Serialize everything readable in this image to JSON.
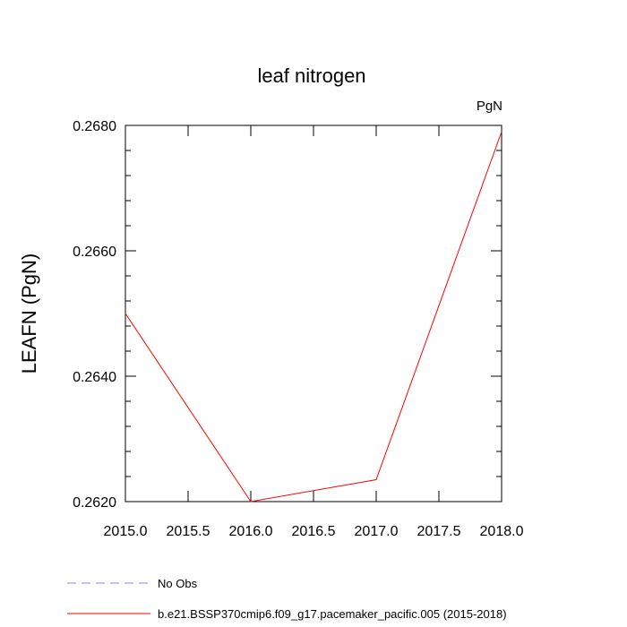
{
  "chart_data": {
    "type": "line",
    "title": "leaf nitrogen",
    "units_label": "PgN",
    "ylabel": "LEAFN  (PgN)",
    "xlabel": "",
    "xlim": [
      2015.0,
      2018.0
    ],
    "ylim": [
      0.262,
      0.268
    ],
    "x_ticks": [
      2015.0,
      2015.5,
      2016.0,
      2016.5,
      2017.0,
      2017.5,
      2018.0
    ],
    "x_tick_labels": [
      "2015.0",
      "2015.5",
      "2016.0",
      "2016.5",
      "2017.0",
      "2017.5",
      "2018.0"
    ],
    "y_ticks": [
      0.262,
      0.264,
      0.266,
      0.268
    ],
    "y_tick_labels": [
      "0.2620",
      "0.2640",
      "0.2660",
      "0.2680"
    ],
    "y_minor_step": 0.0004,
    "x_minor_step": 0.5,
    "grid": false,
    "legend_position": "bottom-left",
    "series": [
      {
        "name": "No Obs",
        "color": "#8c8cff",
        "dash": "dashed",
        "x": [],
        "y": []
      },
      {
        "name": "b.e21.BSSP370cmip6.f09_g17.pacemaker_pacific.005 (2015-2018)",
        "color": "#ff0000",
        "dash": "solid",
        "x": [
          2015.0,
          2016.0,
          2017.0,
          2018.0
        ],
        "y": [
          0.265,
          0.262,
          0.26235,
          0.2679
        ]
      }
    ]
  }
}
